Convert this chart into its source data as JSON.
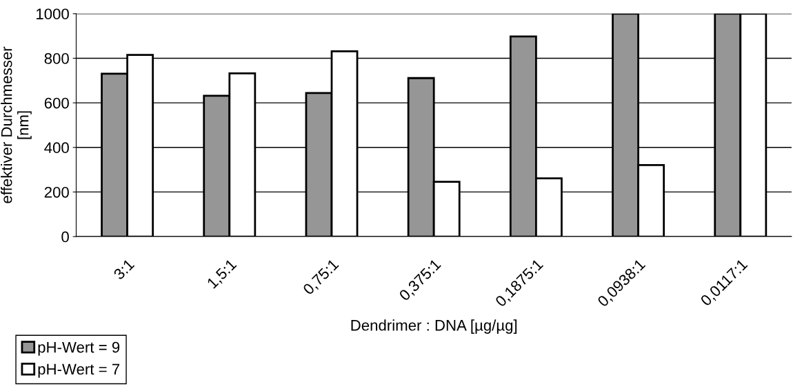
{
  "chart_data": {
    "type": "bar",
    "categories": [
      "3:1",
      "1,5:1",
      "0,75:1",
      "0,375:1",
      "0,1875:1",
      "0,0938:1",
      "0,0117:1"
    ],
    "series": [
      {
        "name": "pH-Wert = 9",
        "color": "#969696",
        "values": [
          731,
          632,
          644,
          711,
          898,
          1000,
          1000
        ]
      },
      {
        "name": "pH-Wert = 7",
        "color": "#ffffff",
        "values": [
          815,
          732,
          831,
          246,
          261,
          321,
          1000
        ]
      }
    ],
    "xlabel": "Dendrimer : DNA [µg/µg]",
    "ylabel": "effektiver Durchmesser\n[nm]",
    "ylim": [
      0,
      1000
    ],
    "yticks": [
      0,
      200,
      400,
      600,
      800,
      1000
    ],
    "grid": "y",
    "legend": "bottom left"
  }
}
